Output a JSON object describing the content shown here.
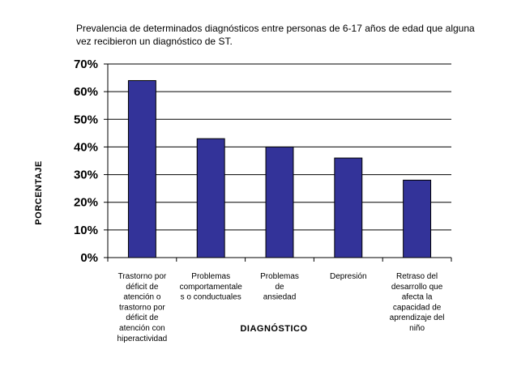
{
  "chart_data": {
    "type": "bar",
    "title": "Prevalencia de determinados diagnósticos entre personas de 6-17 años de edad que alguna vez recibieron un diagnóstico de ST.",
    "xlabel": "DIAGNÓSTICO",
    "ylabel": "PORCENTAJE",
    "ylim": [
      0,
      0.7
    ],
    "yticks": [
      "0%",
      "10%",
      "20%",
      "30%",
      "40%",
      "50%",
      "60%",
      "70%"
    ],
    "grid": true,
    "categories": [
      [
        "Trastorno por",
        "déficit de",
        "atención o",
        "trastorno por",
        "déficit de",
        "atención con",
        "hiperactividad"
      ],
      [
        "Problemas",
        "comportamentale",
        "s o conductuales"
      ],
      [
        "Problemas",
        "de",
        "ansiedad"
      ],
      [
        "Depresión"
      ],
      [
        "Retraso del",
        "desarrollo que",
        "afecta la",
        "capacidad de",
        "aprendizaje del",
        "niño"
      ]
    ],
    "values": [
      0.64,
      0.43,
      0.4,
      0.36,
      0.28
    ],
    "colors": {
      "bar": "#333399",
      "bar_stroke": "#000000",
      "grid": "#000000"
    }
  }
}
